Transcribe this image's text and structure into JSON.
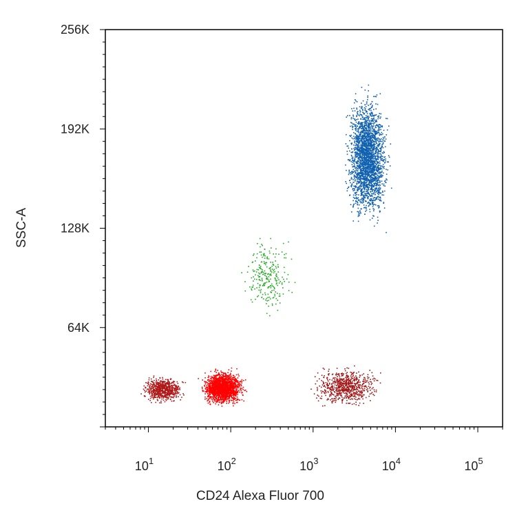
{
  "chart_data": {
    "type": "scatter",
    "title": "",
    "xlabel": "CD24 Alexa Fluor 700",
    "ylabel": "SSC-A",
    "x_scale": "log",
    "xlim": [
      3,
      200000
    ],
    "ylim": [
      0,
      262144
    ],
    "grid": false,
    "x_ticks": [
      {
        "value": 10,
        "base": "10",
        "exp": "1"
      },
      {
        "value": 100,
        "base": "10",
        "exp": "2"
      },
      {
        "value": 1000,
        "base": "10",
        "exp": "3"
      },
      {
        "value": 10000,
        "base": "10",
        "exp": "4"
      },
      {
        "value": 100000,
        "base": "10",
        "exp": "5"
      }
    ],
    "y_ticks": [
      {
        "value": 65536,
        "label": "64K"
      },
      {
        "value": 131072,
        "label": "128K"
      },
      {
        "value": 196608,
        "label": "192K"
      },
      {
        "value": 262144,
        "label": "256K"
      }
    ],
    "series": [
      {
        "color": "#1060b0",
        "x_center": 4500,
        "x_range": [
          2000,
          12000
        ],
        "y_center": 178000,
        "y_range": [
          115000,
          245000
        ],
        "approx_points": 2600
      },
      {
        "color": "#22aa22",
        "x_center": 280,
        "x_range": [
          90,
          800
        ],
        "y_center": 100000,
        "y_range": [
          60000,
          140000
        ],
        "approx_points": 260
      },
      {
        "color": "#ff0000",
        "x_center": 80,
        "x_range": [
          40,
          250
        ],
        "y_center": 26000,
        "y_range": [
          10000,
          45000
        ],
        "approx_points": 1800
      },
      {
        "color": "#b01818",
        "x_center": 15,
        "x_range": [
          5,
          30
        ],
        "y_center": 25000,
        "y_range": [
          12000,
          38000
        ],
        "approx_points": 700
      },
      {
        "color": "#a01515",
        "x_center": 2500,
        "x_range": [
          600,
          12000
        ],
        "y_center": 27000,
        "y_range": [
          10000,
          50000
        ],
        "approx_points": 700
      }
    ]
  }
}
